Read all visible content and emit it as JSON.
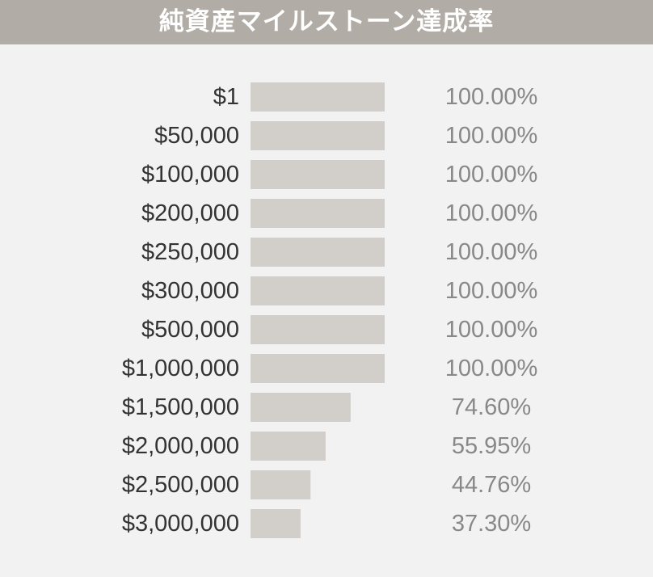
{
  "colors": {
    "title_background": "#b1aca5",
    "title_text": "#ffffff",
    "chart_background": "#f2f2f2",
    "bar": "#d2cfca",
    "category_text": "#333333",
    "value_text": "#888888"
  },
  "chart_data": {
    "type": "bar",
    "orientation": "horizontal",
    "title": "純資産マイルストーン達成率",
    "categories": [
      "$1",
      "$50,000",
      "$100,000",
      "$200,000",
      "$250,000",
      "$300,000",
      "$500,000",
      "$1,000,000",
      "$1,500,000",
      "$2,000,000",
      "$2,500,000",
      "$3,000,000"
    ],
    "values": [
      100,
      100,
      100,
      100,
      100,
      100,
      100,
      100,
      74.6,
      55.95,
      44.76,
      37.3
    ],
    "value_labels": [
      "100.00%",
      "100.00%",
      "100.00%",
      "100.00%",
      "100.00%",
      "100.00%",
      "100.00%",
      "100.00%",
      "74.60%",
      "55.95%",
      "44.76%",
      "37.30%"
    ],
    "xlim": [
      0,
      100
    ],
    "grid": false,
    "legend": "none"
  }
}
